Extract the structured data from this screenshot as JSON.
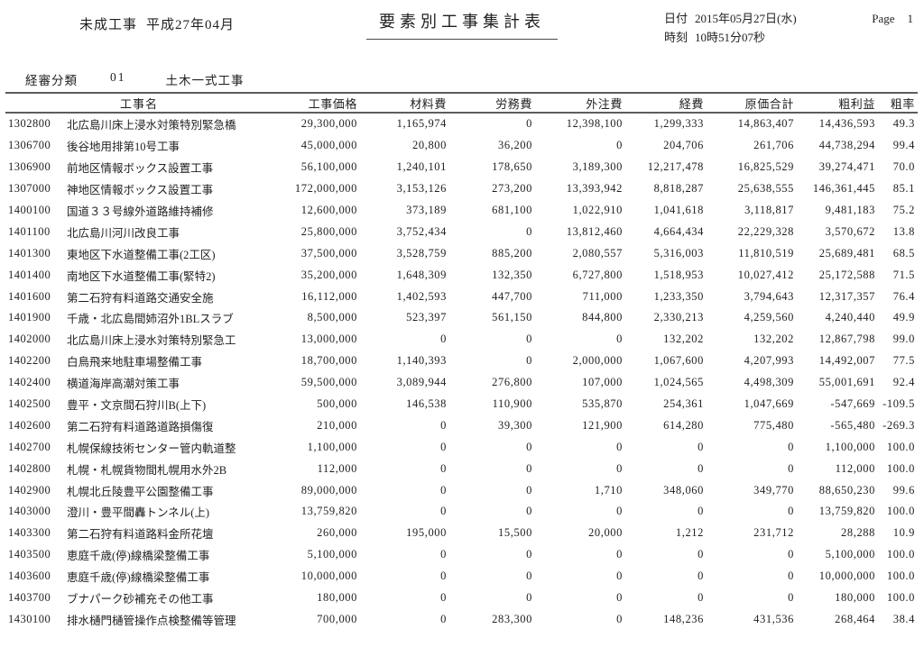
{
  "header": {
    "report_type": "未成工事",
    "period": "平成27年04月",
    "title": "要素別工事集計表",
    "date_label": "日付",
    "date_value": "2015年05月27日(水)",
    "time_label": "時刻",
    "time_value": "10時51分07秒",
    "page_label": "Page",
    "page_number": "1"
  },
  "classification": {
    "label": "経審分類",
    "code": "01",
    "name": "土木一式工事"
  },
  "table": {
    "columns": [
      "工事名",
      "工事価格",
      "材料費",
      "労務費",
      "外注費",
      "経費",
      "原価合計",
      "粗利益",
      "粗率"
    ],
    "rows": [
      {
        "code": "1302800",
        "name": "北広島川床上浸水対策特別緊急橋",
        "price": "29,300,000",
        "material": "1,165,974",
        "labor": "0",
        "outsourcing": "12,398,100",
        "expense": "1,299,333",
        "cost_total": "14,863,407",
        "gross_profit": "14,436,593",
        "gross_rate": "49.3"
      },
      {
        "code": "1306700",
        "name": "後谷地用排第10号工事",
        "price": "45,000,000",
        "material": "20,800",
        "labor": "36,200",
        "outsourcing": "0",
        "expense": "204,706",
        "cost_total": "261,706",
        "gross_profit": "44,738,294",
        "gross_rate": "99.4"
      },
      {
        "code": "1306900",
        "name": "前地区情報ボックス設置工事",
        "price": "56,100,000",
        "material": "1,240,101",
        "labor": "178,650",
        "outsourcing": "3,189,300",
        "expense": "12,217,478",
        "cost_total": "16,825,529",
        "gross_profit": "39,274,471",
        "gross_rate": "70.0"
      },
      {
        "code": "1307000",
        "name": "神地区情報ボックス設置工事",
        "price": "172,000,000",
        "material": "3,153,126",
        "labor": "273,200",
        "outsourcing": "13,393,942",
        "expense": "8,818,287",
        "cost_total": "25,638,555",
        "gross_profit": "146,361,445",
        "gross_rate": "85.1"
      },
      {
        "code": "1400100",
        "name": "国道３３号線外道路維持補修",
        "price": "12,600,000",
        "material": "373,189",
        "labor": "681,100",
        "outsourcing": "1,022,910",
        "expense": "1,041,618",
        "cost_total": "3,118,817",
        "gross_profit": "9,481,183",
        "gross_rate": "75.2"
      },
      {
        "code": "1401100",
        "name": "北広島川河川改良工事",
        "price": "25,800,000",
        "material": "3,752,434",
        "labor": "0",
        "outsourcing": "13,812,460",
        "expense": "4,664,434",
        "cost_total": "22,229,328",
        "gross_profit": "3,570,672",
        "gross_rate": "13.8"
      },
      {
        "code": "1401300",
        "name": "東地区下水道整備工事(2工区)",
        "price": "37,500,000",
        "material": "3,528,759",
        "labor": "885,200",
        "outsourcing": "2,080,557",
        "expense": "5,316,003",
        "cost_total": "11,810,519",
        "gross_profit": "25,689,481",
        "gross_rate": "68.5"
      },
      {
        "code": "1401400",
        "name": "南地区下水道整備工事(緊特2)",
        "price": "35,200,000",
        "material": "1,648,309",
        "labor": "132,350",
        "outsourcing": "6,727,800",
        "expense": "1,518,953",
        "cost_total": "10,027,412",
        "gross_profit": "25,172,588",
        "gross_rate": "71.5"
      },
      {
        "code": "1401600",
        "name": "第二石狩有料道路交通安全施",
        "price": "16,112,000",
        "material": "1,402,593",
        "labor": "447,700",
        "outsourcing": "711,000",
        "expense": "1,233,350",
        "cost_total": "3,794,643",
        "gross_profit": "12,317,357",
        "gross_rate": "76.4"
      },
      {
        "code": "1401900",
        "name": "千歳・北広島間姉沼外1BLスラブ",
        "price": "8,500,000",
        "material": "523,397",
        "labor": "561,150",
        "outsourcing": "844,800",
        "expense": "2,330,213",
        "cost_total": "4,259,560",
        "gross_profit": "4,240,440",
        "gross_rate": "49.9"
      },
      {
        "code": "1402000",
        "name": "北広島川床上浸水対策特別緊急工",
        "price": "13,000,000",
        "material": "0",
        "labor": "0",
        "outsourcing": "0",
        "expense": "132,202",
        "cost_total": "132,202",
        "gross_profit": "12,867,798",
        "gross_rate": "99.0"
      },
      {
        "code": "1402200",
        "name": "白鳥飛来地駐車場整備工事",
        "price": "18,700,000",
        "material": "1,140,393",
        "labor": "0",
        "outsourcing": "2,000,000",
        "expense": "1,067,600",
        "cost_total": "4,207,993",
        "gross_profit": "14,492,007",
        "gross_rate": "77.5"
      },
      {
        "code": "1402400",
        "name": "横道海岸高潮対策工事",
        "price": "59,500,000",
        "material": "3,089,944",
        "labor": "276,800",
        "outsourcing": "107,000",
        "expense": "1,024,565",
        "cost_total": "4,498,309",
        "gross_profit": "55,001,691",
        "gross_rate": "92.4"
      },
      {
        "code": "1402500",
        "name": "豊平・文京間石狩川B(上下)",
        "price": "500,000",
        "material": "146,538",
        "labor": "110,900",
        "outsourcing": "535,870",
        "expense": "254,361",
        "cost_total": "1,047,669",
        "gross_profit": "-547,669",
        "gross_rate": "-109.5"
      },
      {
        "code": "1402600",
        "name": "第二石狩有料道路道路損傷復",
        "price": "210,000",
        "material": "0",
        "labor": "39,300",
        "outsourcing": "121,900",
        "expense": "614,280",
        "cost_total": "775,480",
        "gross_profit": "-565,480",
        "gross_rate": "-269.3"
      },
      {
        "code": "1402700",
        "name": "札幌保線技術センター管内軌道整",
        "price": "1,100,000",
        "material": "0",
        "labor": "0",
        "outsourcing": "0",
        "expense": "0",
        "cost_total": "0",
        "gross_profit": "1,100,000",
        "gross_rate": "100.0"
      },
      {
        "code": "1402800",
        "name": "札幌・札幌貨物間札幌用水外2B",
        "price": "112,000",
        "material": "0",
        "labor": "0",
        "outsourcing": "0",
        "expense": "0",
        "cost_total": "0",
        "gross_profit": "112,000",
        "gross_rate": "100.0"
      },
      {
        "code": "1402900",
        "name": "札幌北丘陵豊平公園整備工事",
        "price": "89,000,000",
        "material": "0",
        "labor": "0",
        "outsourcing": "1,710",
        "expense": "348,060",
        "cost_total": "349,770",
        "gross_profit": "88,650,230",
        "gross_rate": "99.6"
      },
      {
        "code": "1403000",
        "name": "澄川・豊平間轟トンネル(上)",
        "price": "13,759,820",
        "material": "0",
        "labor": "0",
        "outsourcing": "0",
        "expense": "0",
        "cost_total": "0",
        "gross_profit": "13,759,820",
        "gross_rate": "100.0"
      },
      {
        "code": "1403300",
        "name": "第二石狩有料道路料金所花壇",
        "price": "260,000",
        "material": "195,000",
        "labor": "15,500",
        "outsourcing": "20,000",
        "expense": "1,212",
        "cost_total": "231,712",
        "gross_profit": "28,288",
        "gross_rate": "10.9"
      },
      {
        "code": "1403500",
        "name": "恵庭千歳(停)線橋梁整備工事",
        "price": "5,100,000",
        "material": "0",
        "labor": "0",
        "outsourcing": "0",
        "expense": "0",
        "cost_total": "0",
        "gross_profit": "5,100,000",
        "gross_rate": "100.0"
      },
      {
        "code": "1403600",
        "name": "恵庭千歳(停)線橋梁整備工事",
        "price": "10,000,000",
        "material": "0",
        "labor": "0",
        "outsourcing": "0",
        "expense": "0",
        "cost_total": "0",
        "gross_profit": "10,000,000",
        "gross_rate": "100.0"
      },
      {
        "code": "1403700",
        "name": "ブナパーク砂補充その他工事",
        "price": "180,000",
        "material": "0",
        "labor": "0",
        "outsourcing": "0",
        "expense": "0",
        "cost_total": "0",
        "gross_profit": "180,000",
        "gross_rate": "100.0"
      },
      {
        "code": "1430100",
        "name": "排水樋門樋管操作点検整備等管理",
        "price": "700,000",
        "material": "0",
        "labor": "283,300",
        "outsourcing": "0",
        "expense": "148,236",
        "cost_total": "431,536",
        "gross_profit": "268,464",
        "gross_rate": "38.4"
      }
    ]
  }
}
